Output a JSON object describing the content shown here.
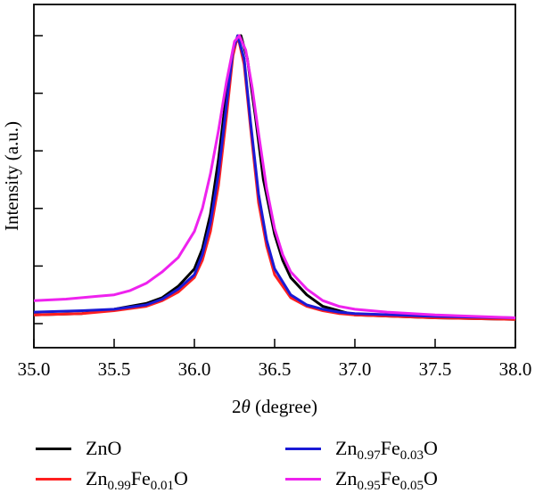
{
  "chart_data": {
    "type": "line",
    "xlabel_prefix": "2",
    "xlabel_symbol": "θ",
    "xlabel_suffix": " (degree)",
    "ylabel": "Intensity (a.u.)",
    "xlim": [
      35.0,
      38.0
    ],
    "ylim": [
      0,
      1.0
    ],
    "grid": false,
    "legend_position": "bottom",
    "x_ticks": [
      "35.0",
      "35.5",
      "36.0",
      "36.5",
      "37.0",
      "37.5",
      "38.0"
    ],
    "x_tick_values": [
      35.0,
      35.5,
      36.0,
      36.5,
      37.0,
      37.5,
      38.0
    ],
    "y_ticks_count": 6,
    "series": [
      {
        "name": "ZnO",
        "name_parts": [
          [
            "Zn",
            ""
          ],
          [
            "O",
            ""
          ]
        ],
        "color": "#000000",
        "x": [
          35.0,
          35.3,
          35.5,
          35.7,
          35.8,
          35.9,
          36.0,
          36.05,
          36.1,
          36.15,
          36.2,
          36.25,
          36.29,
          36.33,
          36.38,
          36.43,
          36.5,
          36.55,
          36.6,
          36.7,
          36.8,
          36.9,
          37.0,
          37.5,
          38.0
        ],
        "y": [
          0.03,
          0.035,
          0.05,
          0.07,
          0.09,
          0.13,
          0.19,
          0.26,
          0.38,
          0.57,
          0.8,
          0.97,
          1.0,
          0.92,
          0.72,
          0.5,
          0.31,
          0.22,
          0.16,
          0.1,
          0.06,
          0.045,
          0.03,
          0.02,
          0.015
        ]
      },
      {
        "name": "Zn0.99Fe0.01O",
        "name_parts": [
          [
            "Zn",
            "0.99"
          ],
          [
            "Fe",
            "0.01"
          ],
          [
            "O",
            ""
          ]
        ],
        "color": "#ff2020",
        "x": [
          35.0,
          35.3,
          35.5,
          35.7,
          35.8,
          35.9,
          36.0,
          36.05,
          36.1,
          36.15,
          36.2,
          36.24,
          36.27,
          36.31,
          36.35,
          36.4,
          36.45,
          36.5,
          36.6,
          36.7,
          36.8,
          36.9,
          37.0,
          37.5,
          38.0
        ],
        "y": [
          0.03,
          0.035,
          0.045,
          0.06,
          0.08,
          0.11,
          0.16,
          0.22,
          0.32,
          0.48,
          0.72,
          0.93,
          1.0,
          0.9,
          0.68,
          0.42,
          0.27,
          0.17,
          0.09,
          0.06,
          0.045,
          0.035,
          0.03,
          0.02,
          0.015
        ]
      },
      {
        "name": "Zn0.97Fe0.03O",
        "name_parts": [
          [
            "Zn",
            "0.97"
          ],
          [
            "Fe",
            "0.03"
          ],
          [
            "O",
            ""
          ]
        ],
        "color": "#1a1ad6",
        "x": [
          35.0,
          35.3,
          35.5,
          35.7,
          35.8,
          35.9,
          36.0,
          36.05,
          36.1,
          36.15,
          36.2,
          36.24,
          36.27,
          36.31,
          36.35,
          36.4,
          36.45,
          36.5,
          36.6,
          36.7,
          36.8,
          36.9,
          37.0,
          37.5,
          38.0
        ],
        "y": [
          0.04,
          0.045,
          0.05,
          0.065,
          0.085,
          0.12,
          0.17,
          0.24,
          0.35,
          0.52,
          0.76,
          0.95,
          1.0,
          0.92,
          0.7,
          0.45,
          0.29,
          0.19,
          0.1,
          0.065,
          0.05,
          0.04,
          0.035,
          0.025,
          0.02
        ]
      },
      {
        "name": "Zn0.95Fe0.05O",
        "name_parts": [
          [
            "Zn",
            "0.95"
          ],
          [
            "Fe",
            "0.05"
          ],
          [
            "O",
            ""
          ]
        ],
        "color": "#ee22ee",
        "x": [
          35.0,
          35.2,
          35.4,
          35.5,
          35.6,
          35.7,
          35.75,
          35.8,
          35.9,
          36.0,
          36.05,
          36.1,
          36.15,
          36.2,
          36.25,
          36.28,
          36.32,
          36.36,
          36.4,
          36.45,
          36.5,
          36.55,
          36.6,
          36.7,
          36.8,
          36.9,
          37.0,
          37.2,
          37.5,
          38.0
        ],
        "y": [
          0.08,
          0.085,
          0.095,
          0.1,
          0.115,
          0.14,
          0.16,
          0.18,
          0.23,
          0.32,
          0.4,
          0.52,
          0.67,
          0.84,
          0.98,
          1.0,
          0.95,
          0.82,
          0.66,
          0.47,
          0.33,
          0.24,
          0.18,
          0.12,
          0.08,
          0.06,
          0.05,
          0.04,
          0.03,
          0.02
        ]
      }
    ]
  }
}
